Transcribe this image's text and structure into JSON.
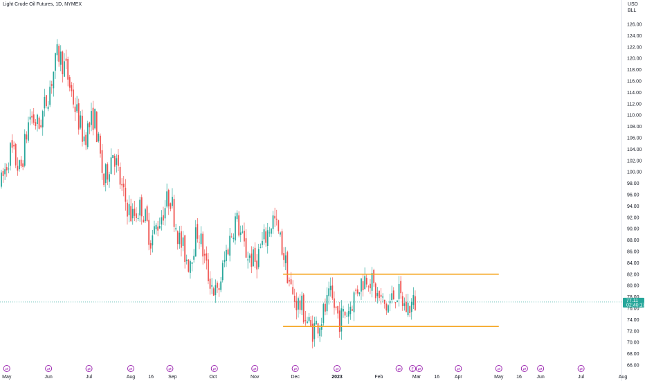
{
  "header": {
    "title": "Light Crude Oil Futures, 1D, NYMEX",
    "currency": "USD",
    "unit": "BLL"
  },
  "colors": {
    "up": "#26a69a",
    "down": "#ef5350",
    "level": "#f5a623",
    "event": "#9c27b0",
    "last_price_line": "#26a69a"
  },
  "chart_data": {
    "type": "candlestick",
    "title": "Light Crude Oil Futures, 1D, NYMEX",
    "ylim": [
      65,
      127
    ],
    "y_ticks": [
      "126.00",
      "124.00",
      "122.00",
      "120.00",
      "118.00",
      "116.00",
      "114.00",
      "112.00",
      "110.00",
      "108.00",
      "106.00",
      "104.00",
      "102.00",
      "100.00",
      "98.00",
      "96.00",
      "94.00",
      "92.00",
      "90.00",
      "88.00",
      "86.00",
      "84.00",
      "82.00",
      "80.00",
      "78.00",
      "76.00",
      "74.00",
      "72.00",
      "70.00",
      "68.00",
      "66.00"
    ],
    "x_ticks": [
      {
        "label": "May",
        "date": "2022-05-01",
        "bold": false
      },
      {
        "label": "Jun",
        "date": "2022-06-01",
        "bold": false
      },
      {
        "label": "Jul",
        "date": "2022-07-01",
        "bold": false
      },
      {
        "label": "Aug",
        "date": "2022-08-01",
        "bold": false
      },
      {
        "label": "16",
        "date": "2022-08-16",
        "bold": false
      },
      {
        "label": "Sep",
        "date": "2022-09-01",
        "bold": false
      },
      {
        "label": "Oct",
        "date": "2022-10-01",
        "bold": false
      },
      {
        "label": "Nov",
        "date": "2022-11-01",
        "bold": false
      },
      {
        "label": "Dec",
        "date": "2022-12-01",
        "bold": false
      },
      {
        "label": "2023",
        "date": "2023-01-01",
        "bold": true
      },
      {
        "label": "Feb",
        "date": "2023-02-01",
        "bold": false
      },
      {
        "label": "Mar",
        "date": "2023-03-01",
        "bold": false
      },
      {
        "label": "16",
        "date": "2023-03-16",
        "bold": false
      },
      {
        "label": "Apr",
        "date": "2023-04-01",
        "bold": false
      },
      {
        "label": "May",
        "date": "2023-05-01",
        "bold": false
      },
      {
        "label": "16",
        "date": "2023-05-16",
        "bold": false
      },
      {
        "label": "Jun",
        "date": "2023-06-01",
        "bold": false
      },
      {
        "label": "Jul",
        "date": "2023-07-01",
        "bold": false
      },
      {
        "label": "Aug",
        "date": "2023-08-01",
        "bold": false
      }
    ],
    "series": [
      {
        "values": [
          {
            "date": "2022-04-27",
            "close": 98
          },
          {
            "date": "2022-05-04",
            "close": 104
          },
          {
            "date": "2022-05-11",
            "close": 100
          },
          {
            "date": "2022-05-18",
            "close": 110
          },
          {
            "date": "2022-05-25",
            "close": 108
          },
          {
            "date": "2022-06-01",
            "close": 114
          },
          {
            "date": "2022-06-08",
            "close": 121
          },
          {
            "date": "2022-06-14",
            "close": 118
          },
          {
            "date": "2022-06-20",
            "close": 112
          },
          {
            "date": "2022-06-27",
            "close": 106
          },
          {
            "date": "2022-07-05",
            "close": 110
          },
          {
            "date": "2022-07-12",
            "close": 98
          },
          {
            "date": "2022-07-19",
            "close": 104
          },
          {
            "date": "2022-07-26",
            "close": 96
          },
          {
            "date": "2022-08-02",
            "close": 92
          },
          {
            "date": "2022-08-09",
            "close": 94
          },
          {
            "date": "2022-08-16",
            "close": 88
          },
          {
            "date": "2022-08-23",
            "close": 92
          },
          {
            "date": "2022-08-30",
            "close": 96
          },
          {
            "date": "2022-09-06",
            "close": 88
          },
          {
            "date": "2022-09-13",
            "close": 84
          },
          {
            "date": "2022-09-20",
            "close": 90
          },
          {
            "date": "2022-09-27",
            "close": 82
          },
          {
            "date": "2022-10-04",
            "close": 78
          },
          {
            "date": "2022-10-11",
            "close": 86
          },
          {
            "date": "2022-10-18",
            "close": 92
          },
          {
            "date": "2022-10-25",
            "close": 86
          },
          {
            "date": "2022-11-01",
            "close": 84
          },
          {
            "date": "2022-11-08",
            "close": 88
          },
          {
            "date": "2022-11-15",
            "close": 92
          },
          {
            "date": "2022-11-22",
            "close": 86
          },
          {
            "date": "2022-11-29",
            "close": 78
          },
          {
            "date": "2022-12-06",
            "close": 76
          },
          {
            "date": "2022-12-13",
            "close": 72
          },
          {
            "date": "2022-12-20",
            "close": 74
          },
          {
            "date": "2022-12-27",
            "close": 78
          },
          {
            "date": "2023-01-03",
            "close": 74
          },
          {
            "date": "2023-01-10",
            "close": 76
          },
          {
            "date": "2023-01-17",
            "close": 80
          },
          {
            "date": "2023-01-24",
            "close": 82
          },
          {
            "date": "2023-01-31",
            "close": 78
          },
          {
            "date": "2023-02-07",
            "close": 76
          },
          {
            "date": "2023-02-14",
            "close": 79
          },
          {
            "date": "2023-02-21",
            "close": 76
          },
          {
            "date": "2023-02-28",
            "close": 77
          }
        ]
      }
    ],
    "horizontal_levels": [
      82.0,
      72.8
    ],
    "level_range": {
      "start": "2022-11-22",
      "end": "2023-05-01"
    },
    "last_price": {
      "value": "77.11",
      "countdown": "02:40:17"
    }
  },
  "events": [
    {
      "date": "2022-05-01",
      "label": "⇄"
    },
    {
      "date": "2022-06-01",
      "label": "⇄"
    },
    {
      "date": "2022-07-01",
      "label": "⇄"
    },
    {
      "date": "2022-08-01",
      "label": "⇄"
    },
    {
      "date": "2022-08-30",
      "label": "⇄"
    },
    {
      "date": "2022-10-02",
      "label": "⇄"
    },
    {
      "date": "2022-11-01",
      "label": "⇄"
    },
    {
      "date": "2022-12-01",
      "label": "⇄"
    },
    {
      "date": "2023-01-01",
      "label": "⇄"
    },
    {
      "date": "2023-02-16",
      "label": "⇄"
    },
    {
      "date": "2023-02-26",
      "label": "E"
    },
    {
      "date": "2023-03-03",
      "label": "⇄"
    },
    {
      "date": "2023-04-01",
      "label": "⇄"
    },
    {
      "date": "2023-05-01",
      "label": "⇄"
    },
    {
      "date": "2023-05-20",
      "label": "⇄"
    },
    {
      "date": "2023-06-01",
      "label": "⇄"
    },
    {
      "date": "2023-07-01",
      "label": "⇄"
    }
  ]
}
